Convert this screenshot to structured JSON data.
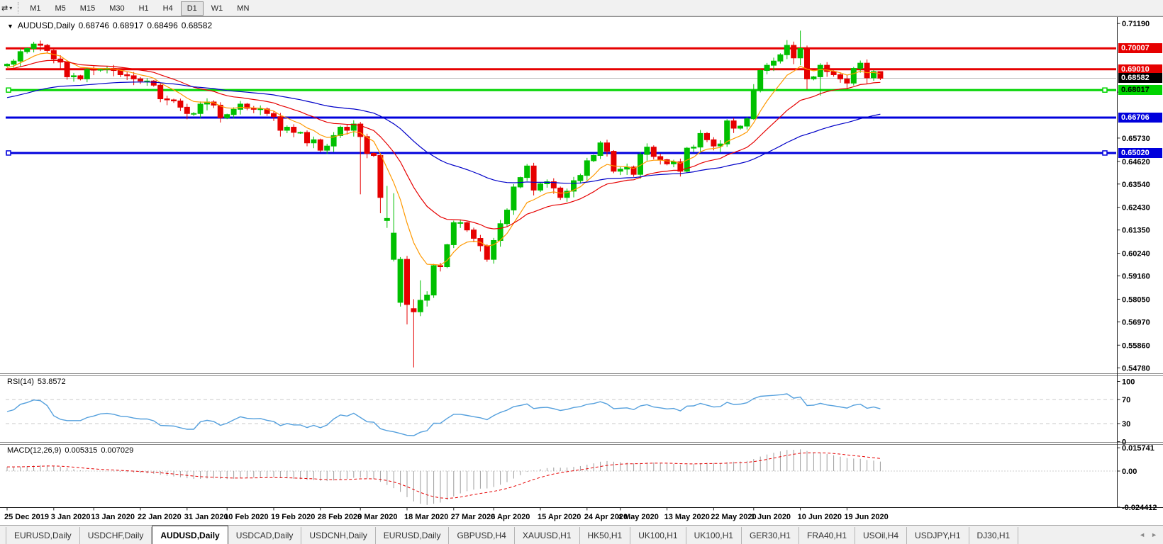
{
  "toolbar": {
    "chart_tools_icon": "⇄",
    "caret_icon": "▾",
    "timeframes": [
      "M1",
      "M5",
      "M15",
      "M30",
      "H1",
      "H4",
      "D1",
      "W1",
      "MN"
    ],
    "active_timeframe": "D1"
  },
  "header": {
    "collapse_icon": "▼",
    "symbol": "AUDUSD,Daily",
    "open": "0.68746",
    "high": "0.68917",
    "low": "0.68496",
    "close": "0.68582"
  },
  "rsi": {
    "label": "RSI(14)",
    "value": "53.8572",
    "axis": [
      "100",
      "70",
      "30",
      "0"
    ],
    "level_lines": [
      70,
      30
    ],
    "line_color": "#55a0dd",
    "level_color": "#c9c9c9"
  },
  "macd": {
    "label": "MACD(12,26,9)",
    "main": "0.005315",
    "signal": "0.007029",
    "axis": [
      "0.015741",
      "0.00",
      "-0.024412"
    ],
    "hist_color": "#9c9c9c",
    "signal_color": "#e60000"
  },
  "price_axis": {
    "ticks": [
      "0.71190",
      "0.67920",
      "0.65730",
      "0.64620",
      "0.63540",
      "0.62430",
      "0.61350",
      "0.60240",
      "0.59160",
      "0.58050",
      "0.56970",
      "0.55860",
      "0.54780"
    ]
  },
  "levels": [
    {
      "price": "0.70007",
      "value": 0.70007,
      "color": "#e60000",
      "text_color": "#ffffff",
      "thickness": 3,
      "handles": false
    },
    {
      "price": "0.69010",
      "value": 0.6901,
      "color": "#e60000",
      "text_color": "#ffffff",
      "thickness": 3,
      "handles": false
    },
    {
      "price": "0.68582",
      "value": 0.68582,
      "color": "#bcbcbc",
      "box_color": "#000000",
      "text_color": "#ffffff",
      "thickness": 1,
      "type": "bid"
    },
    {
      "price": "0.68017",
      "value": 0.68017,
      "color": "#00d400",
      "text_color": "#000000",
      "thickness": 3,
      "handles": true
    },
    {
      "price": "0.66706",
      "value": 0.66706,
      "color": "#0000dc",
      "text_color": "#ffffff",
      "thickness": 3,
      "handles": false
    },
    {
      "price": "0.65020",
      "value": 0.6502,
      "color": "#0000dc",
      "text_color": "#ffffff",
      "thickness": 3,
      "handles": true
    }
  ],
  "chart_data": {
    "type": "candlestick",
    "symbol": "AUDUSD",
    "timeframe": "Daily",
    "up_color": "#00c000",
    "down_color": "#e60000",
    "y_range": [
      0.5452,
      0.715
    ],
    "rsi_range": [
      0,
      100
    ],
    "macd_range": [
      -0.024412,
      0.015741
    ],
    "ma_lines": [
      {
        "name": "fast",
        "color": "#ff9900",
        "period": 8,
        "seed": 0.6905
      },
      {
        "name": "medium",
        "color": "#e60000",
        "period": 21,
        "seed": 0.69
      },
      {
        "name": "slow",
        "color": "#0000c8",
        "period": 55,
        "seed": 0.676
      }
    ],
    "first_open": 0.6918,
    "close": [
      0.6925,
      0.694,
      0.6985,
      0.7,
      0.7021,
      0.7015,
      0.699,
      0.695,
      0.6935,
      0.6865,
      0.687,
      0.6855,
      0.69,
      0.6898,
      0.69,
      0.6905,
      0.6895,
      0.6875,
      0.687,
      0.6855,
      0.6845,
      0.6845,
      0.6825,
      0.676,
      0.6755,
      0.675,
      0.672,
      0.669,
      0.669,
      0.6735,
      0.6745,
      0.673,
      0.667,
      0.6685,
      0.671,
      0.6735,
      0.6715,
      0.671,
      0.6712,
      0.669,
      0.6675,
      0.661,
      0.6625,
      0.66,
      0.66,
      0.655,
      0.6565,
      0.6515,
      0.6535,
      0.6585,
      0.6625,
      0.661,
      0.664,
      0.658,
      0.65,
      0.649,
      0.629,
      0.619,
      0.612,
      0.5995,
      0.578,
      0.5745,
      0.58,
      0.5825,
      0.5965,
      0.596,
      0.6065,
      0.617,
      0.617,
      0.6135,
      0.6095,
      0.606,
      0.5995,
      0.6085,
      0.6165,
      0.623,
      0.634,
      0.6385,
      0.644,
      0.6325,
      0.6355,
      0.6365,
      0.6335,
      0.629,
      0.632,
      0.637,
      0.6395,
      0.6465,
      0.649,
      0.655,
      0.651,
      0.6415,
      0.6425,
      0.6435,
      0.64,
      0.6495,
      0.653,
      0.6485,
      0.647,
      0.645,
      0.646,
      0.6415,
      0.6525,
      0.653,
      0.6595,
      0.6565,
      0.6535,
      0.6545,
      0.6655,
      0.662,
      0.663,
      0.6665,
      0.68,
      0.6895,
      0.692,
      0.694,
      0.697,
      0.7015,
      0.6955,
      0.7,
      0.6855,
      0.6865,
      0.692,
      0.689,
      0.6875,
      0.6855,
      0.6835,
      0.6905,
      0.693,
      0.686,
      0.689,
      0.68582
    ],
    "open_overrides": {
      "57": 0.618,
      "58": 0.5995,
      "59": 0.579,
      "61": 0.576
    },
    "wick_overrides": {
      "53": [
        0.665,
        0.6305
      ],
      "56": [
        null,
        0.6215
      ],
      "57": [
        0.6345,
        0.6145
      ],
      "58": [
        0.631,
        0.5985
      ],
      "59": [
        null,
        0.577
      ],
      "60": [
        null,
        0.5685
      ],
      "61": [
        0.5805,
        0.548
      ],
      "62": [
        0.5895,
        null
      ],
      "112": [
        0.683,
        0.666
      ],
      "117": [
        0.704,
        null
      ],
      "119": [
        0.7085,
        0.692
      ],
      "120": [
        null,
        0.6805
      ],
      "122": [
        null,
        0.6775
      ],
      "131": [
        0.68917,
        0.68496
      ]
    },
    "time_labels": [
      [
        0,
        "25 Dec 2019"
      ],
      [
        7,
        "3 Jan 2020"
      ],
      [
        13,
        "13 Jan 2020"
      ],
      [
        20,
        "22 Jan 2020"
      ],
      [
        27,
        "31 Jan 2020"
      ],
      [
        33,
        "10 Feb 2020"
      ],
      [
        40,
        "19 Feb 2020"
      ],
      [
        47,
        "28 Feb 2020"
      ],
      [
        53,
        "9 Mar 2020"
      ],
      [
        60,
        "18 Mar 2020"
      ],
      [
        67,
        "27 Mar 2020"
      ],
      [
        73,
        "6 Apr 2020"
      ],
      [
        80,
        "15 Apr 2020"
      ],
      [
        87,
        "24 Apr 2020"
      ],
      [
        92,
        "4 May 2020"
      ],
      [
        99,
        "13 May 2020"
      ],
      [
        106,
        "22 May 2020"
      ],
      [
        112,
        "1 Jun 2020"
      ],
      [
        119,
        "10 Jun 2020"
      ],
      [
        126,
        "19 Jun 2020"
      ]
    ]
  },
  "tabs": {
    "nav_left": "◄",
    "nav_right": "►",
    "items": [
      {
        "label": "EURUSD,Daily",
        "active": false
      },
      {
        "label": "USDCHF,Daily",
        "active": false
      },
      {
        "label": "AUDUSD,Daily",
        "active": true
      },
      {
        "label": "USDCAD,Daily",
        "active": false
      },
      {
        "label": "USDCNH,Daily",
        "active": false
      },
      {
        "label": "EURUSD,Daily",
        "active": false
      },
      {
        "label": "GBPUSD,H4",
        "active": false
      },
      {
        "label": "XAUUSD,H1",
        "active": false
      },
      {
        "label": "HK50,H1",
        "active": false
      },
      {
        "label": "UK100,H1",
        "active": false
      },
      {
        "label": "UK100,H1",
        "active": false
      },
      {
        "label": "GER30,H1",
        "active": false
      },
      {
        "label": "FRA40,H1",
        "active": false
      },
      {
        "label": "USOil,H4",
        "active": false
      },
      {
        "label": "USDJPY,H1",
        "active": false
      },
      {
        "label": "DJ30,H1",
        "active": false
      }
    ]
  }
}
